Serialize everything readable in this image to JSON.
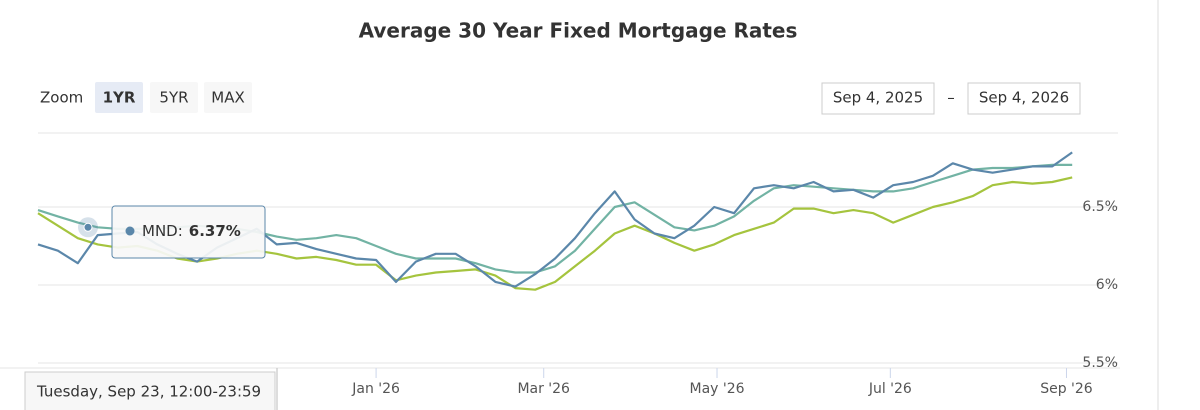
{
  "chart_data": {
    "type": "line",
    "title": "Average 30 Year Fixed Mortgage Rates",
    "x": [
      0,
      7,
      14,
      21,
      28,
      35,
      42,
      49,
      56,
      63,
      70,
      77,
      84,
      91,
      98,
      105,
      112,
      119,
      126,
      133,
      140,
      147,
      154,
      161,
      168,
      175,
      182,
      189,
      196,
      203,
      210,
      217,
      224,
      231,
      238,
      245,
      252,
      259,
      266,
      273,
      280,
      287,
      294,
      301,
      308,
      315,
      322,
      329,
      336,
      343,
      350,
      357,
      364
    ],
    "xlim": [
      0,
      365
    ],
    "xticks": [
      {
        "value": 119,
        "label": "Jan '26"
      },
      {
        "value": 178,
        "label": "Mar '26"
      },
      {
        "value": 239,
        "label": "May '26"
      },
      {
        "value": 300,
        "label": "Jul '26"
      },
      {
        "value": 362,
        "label": "Sep '26"
      }
    ],
    "ylim": [
      5.5,
      7.0
    ],
    "yticks": [
      {
        "value": 5.5,
        "label": "5.5%"
      },
      {
        "value": 6,
        "label": "6%"
      },
      {
        "value": 6.5,
        "label": "6.5%"
      }
    ],
    "grid": true,
    "series": [
      {
        "color": "#72b3a4",
        "values": [
          6.48,
          6.44,
          6.4,
          6.37,
          6.36,
          6.36,
          6.36,
          6.37,
          6.38,
          6.37,
          6.36,
          6.34,
          6.31,
          6.29,
          6.3,
          6.32,
          6.3,
          6.25,
          6.2,
          6.17,
          6.17,
          6.17,
          6.14,
          6.1,
          6.08,
          6.08,
          6.12,
          6.22,
          6.36,
          6.5,
          6.53,
          6.45,
          6.37,
          6.35,
          6.38,
          6.44,
          6.54,
          6.62,
          6.64,
          6.63,
          6.62,
          6.61,
          6.6,
          6.6,
          6.62,
          6.66,
          6.7,
          6.74,
          6.75,
          6.75,
          6.76,
          6.77,
          6.77
        ]
      },
      {
        "color": "#a5c43e",
        "values": [
          6.46,
          6.38,
          6.3,
          6.26,
          6.24,
          6.25,
          6.22,
          6.17,
          6.15,
          6.17,
          6.2,
          6.22,
          6.2,
          6.17,
          6.18,
          6.16,
          6.13,
          6.13,
          6.03,
          6.06,
          6.08,
          6.09,
          6.1,
          6.06,
          5.98,
          5.97,
          6.02,
          6.12,
          6.22,
          6.33,
          6.38,
          6.33,
          6.27,
          6.22,
          6.26,
          6.32,
          6.36,
          6.4,
          6.49,
          6.49,
          6.46,
          6.48,
          6.46,
          6.4,
          6.45,
          6.5,
          6.53,
          6.57,
          6.64,
          6.66,
          6.65,
          6.66,
          6.69
        ]
      },
      {
        "color": "#5b87aa",
        "values": [
          6.26,
          6.22,
          6.14,
          6.32,
          6.33,
          6.34,
          6.26,
          6.2,
          6.15,
          6.24,
          6.3,
          6.36,
          6.26,
          6.27,
          6.23,
          6.2,
          6.17,
          6.16,
          6.02,
          6.15,
          6.2,
          6.2,
          6.12,
          6.02,
          5.99,
          6.07,
          6.17,
          6.3,
          6.46,
          6.6,
          6.42,
          6.33,
          6.3,
          6.38,
          6.5,
          6.46,
          6.62,
          6.64,
          6.62,
          6.66,
          6.6,
          6.61,
          6.56,
          6.64,
          6.66,
          6.7,
          6.78,
          6.74,
          6.72,
          6.74,
          6.76,
          6.76,
          6.85
        ]
      }
    ],
    "tooltip": {
      "label": "MND:",
      "value": 6.37,
      "value_label": "6.37%",
      "date": "Tuesday, Sep 23, 12:00-23:59"
    }
  },
  "range_selector": {
    "zoom_label": "Zoom",
    "buttons": [
      "1YR",
      "5YR",
      "MAX"
    ],
    "from": "Sep 4, 2025",
    "separator": "–",
    "to": "Sep 4, 2026"
  }
}
